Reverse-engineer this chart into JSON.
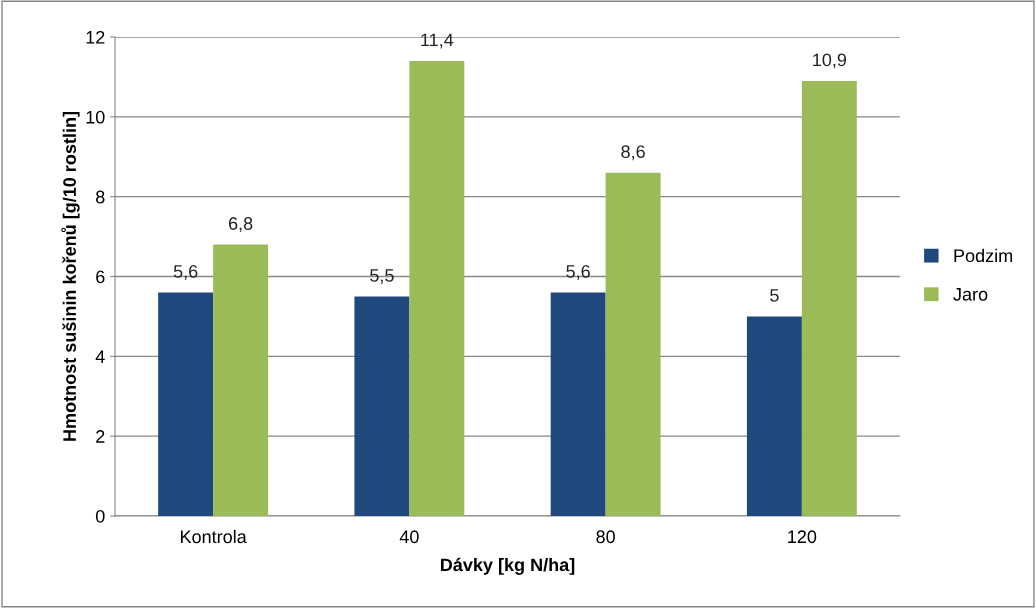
{
  "chart_data": {
    "type": "bar",
    "xlabel": "Dávky [kg N/ha]",
    "ylabel": "Hmotnost sušinin kořenů [g/10 rostlin]",
    "categories": [
      "Kontrola",
      "40",
      "80",
      "120"
    ],
    "series": [
      {
        "name": "Podzim",
        "color": "#1f497d",
        "values": [
          5.6,
          5.5,
          5.6,
          5
        ],
        "value_labels": [
          "5,6",
          "5,5",
          "5,6",
          "5"
        ]
      },
      {
        "name": "Jaro",
        "color": "#9bbb59",
        "values": [
          6.8,
          11.4,
          8.6,
          10.9
        ],
        "value_labels": [
          "6,8",
          "11,4",
          "8,6",
          "10,9"
        ]
      }
    ],
    "ylim": [
      0,
      12
    ],
    "yticks": [
      0,
      2,
      4,
      6,
      8,
      10,
      12
    ],
    "grid": "y",
    "legend": "right"
  }
}
